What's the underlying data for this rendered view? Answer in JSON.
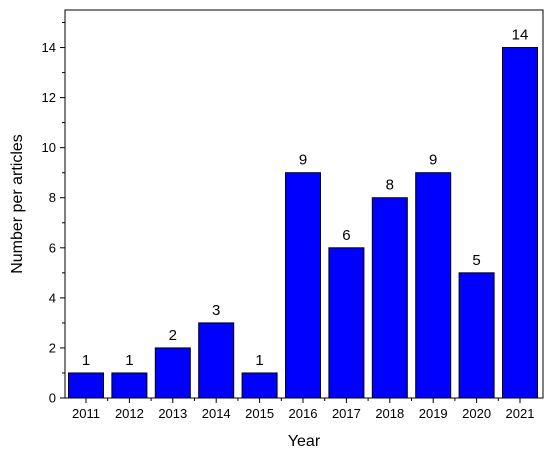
{
  "chart_data": {
    "type": "bar",
    "title": "",
    "xlabel": "Year",
    "ylabel": "Number per articles",
    "categories": [
      "2011",
      "2012",
      "2013",
      "2014",
      "2015",
      "2016",
      "2017",
      "2018",
      "2019",
      "2020",
      "2021"
    ],
    "values": [
      1,
      1,
      2,
      3,
      1,
      9,
      6,
      8,
      9,
      5,
      14
    ],
    "ylim": [
      0,
      15.5
    ],
    "yticks": [
      0,
      2,
      4,
      6,
      8,
      10,
      12,
      14
    ],
    "bar_color": "#0000ff",
    "bar_edge_color": "#000000",
    "grid": false,
    "legend": "none"
  }
}
